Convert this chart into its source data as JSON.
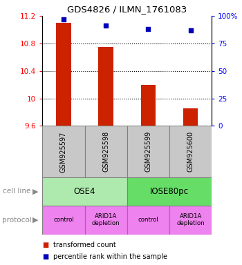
{
  "title": "GDS4826 / ILMN_1761083",
  "samples": [
    "GSM925597",
    "GSM925598",
    "GSM925599",
    "GSM925600"
  ],
  "bar_values": [
    11.1,
    10.75,
    10.2,
    9.85
  ],
  "bar_base": 9.6,
  "blue_values": [
    97,
    91,
    88,
    87
  ],
  "ylim_left": [
    9.6,
    11.2
  ],
  "ylim_right": [
    0,
    100
  ],
  "yticks_left": [
    9.6,
    10.0,
    10.4,
    10.8,
    11.2
  ],
  "ytick_labels_left": [
    "9.6",
    "10",
    "10.4",
    "10.8",
    "11.2"
  ],
  "yticks_right": [
    0,
    25,
    50,
    75,
    100
  ],
  "ytick_labels_right": [
    "0",
    "25",
    "50",
    "75",
    "100%"
  ],
  "cell_line_labels": [
    "OSE4",
    "IOSE80pc"
  ],
  "cell_line_colors": [
    "#aeeaae",
    "#66dd66"
  ],
  "protocol_labels": [
    "control",
    "ARID1A\ndepletion",
    "control",
    "ARID1A\ndepletion"
  ],
  "protocol_color": "#ee82ee",
  "bar_color": "#cc2200",
  "blue_color": "#0000bb",
  "sample_bg_color": "#c8c8c8",
  "legend_red_label": "transformed count",
  "legend_blue_label": "percentile rank within the sample",
  "grid_lines": [
    10.0,
    10.4,
    10.8
  ]
}
